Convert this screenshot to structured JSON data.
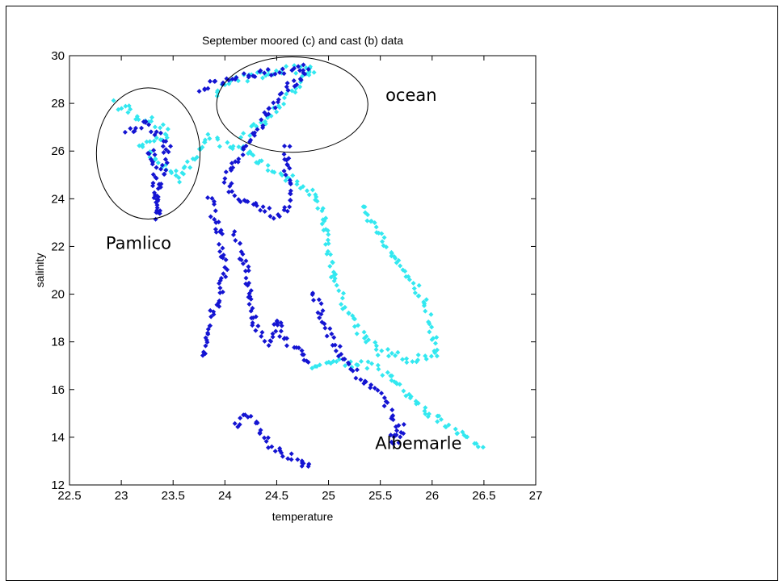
{
  "chart_data": {
    "type": "scatter",
    "title": "September moored (c) and cast (b) data",
    "xlabel": "temperature",
    "ylabel": "salinity",
    "xlim": [
      22.5,
      27
    ],
    "ylim": [
      12,
      30
    ],
    "xticks": [
      "22.5",
      "23",
      "23.5",
      "24",
      "24.5",
      "25",
      "25.5",
      "26",
      "26.5",
      "27"
    ],
    "yticks": [
      "12",
      "14",
      "16",
      "18",
      "20",
      "22",
      "24",
      "26",
      "28",
      "30"
    ],
    "grid": false,
    "colors": {
      "moored": "#33e8f0",
      "cast": "#1414d2",
      "axes": "#000000"
    },
    "series": [
      {
        "label": "moored (c)",
        "marker": "diamond",
        "path": [
          [
            22.95,
            28.0
          ],
          [
            23.05,
            27.8
          ],
          [
            23.15,
            27.5
          ],
          [
            23.3,
            27.2
          ],
          [
            23.45,
            26.7
          ],
          [
            23.2,
            26.2
          ],
          [
            23.35,
            25.7
          ],
          [
            23.55,
            24.8
          ],
          [
            23.7,
            25.8
          ],
          [
            23.85,
            26.6
          ],
          [
            24.0,
            26.3
          ],
          [
            24.2,
            26.0
          ],
          [
            24.35,
            25.5
          ],
          [
            24.5,
            25.2
          ],
          [
            24.7,
            24.6
          ],
          [
            24.85,
            24.2
          ],
          [
            24.95,
            23.3
          ],
          [
            25.0,
            22.0
          ],
          [
            25.05,
            20.8
          ],
          [
            25.15,
            19.6
          ],
          [
            25.3,
            18.5
          ],
          [
            25.5,
            17.6
          ],
          [
            25.7,
            17.3
          ],
          [
            25.95,
            17.3
          ],
          [
            26.05,
            17.6
          ],
          [
            26.0,
            18.3
          ],
          [
            25.95,
            19.4
          ],
          [
            25.8,
            20.6
          ],
          [
            25.6,
            21.8
          ],
          [
            25.4,
            23.0
          ],
          [
            25.3,
            23.8
          ]
        ],
        "path2": [
          [
            24.85,
            17.0
          ],
          [
            25.1,
            17.2
          ],
          [
            25.4,
            17.0
          ],
          [
            25.6,
            16.5
          ],
          [
            25.75,
            15.9
          ],
          [
            25.9,
            15.2
          ],
          [
            26.1,
            14.6
          ],
          [
            26.3,
            14.0
          ],
          [
            26.5,
            13.6
          ]
        ],
        "path3": [
          [
            23.9,
            28.4
          ],
          [
            24.1,
            29.0
          ],
          [
            24.35,
            29.2
          ],
          [
            24.6,
            29.4
          ],
          [
            24.85,
            29.5
          ],
          [
            24.7,
            28.7
          ],
          [
            24.5,
            27.8
          ],
          [
            24.3,
            27.0
          ],
          [
            24.15,
            26.5
          ]
        ]
      },
      {
        "label": "cast (b)",
        "marker": "diamond",
        "path": [
          [
            23.05,
            26.8
          ],
          [
            23.2,
            27.2
          ],
          [
            23.35,
            26.8
          ],
          [
            23.45,
            26.2
          ],
          [
            23.4,
            25.0
          ],
          [
            23.35,
            24.0
          ],
          [
            23.35,
            23.2
          ],
          [
            23.3,
            26.0
          ],
          [
            23.25,
            25.6
          ]
        ],
        "path2": [
          [
            23.75,
            28.6
          ],
          [
            23.9,
            28.9
          ],
          [
            24.1,
            29.1
          ],
          [
            24.3,
            29.2
          ],
          [
            24.5,
            29.3
          ],
          [
            24.75,
            29.5
          ],
          [
            24.8,
            29.3
          ],
          [
            24.6,
            28.6
          ],
          [
            24.45,
            27.8
          ],
          [
            24.35,
            27.0
          ],
          [
            24.2,
            26.3
          ],
          [
            24.1,
            25.6
          ],
          [
            24.0,
            24.8
          ],
          [
            24.1,
            24.2
          ],
          [
            24.3,
            23.6
          ],
          [
            24.5,
            23.3
          ],
          [
            24.65,
            23.8
          ],
          [
            24.6,
            25.0
          ],
          [
            24.6,
            26.3
          ]
        ],
        "path3": [
          [
            23.85,
            24.0
          ],
          [
            23.95,
            22.5
          ],
          [
            24.0,
            21.0
          ],
          [
            23.95,
            19.8
          ],
          [
            23.85,
            18.8
          ],
          [
            23.8,
            17.5
          ],
          [
            23.75,
            17.2
          ]
        ],
        "path4": [
          [
            24.1,
            22.5
          ],
          [
            24.2,
            21.0
          ],
          [
            24.25,
            19.5
          ],
          [
            24.3,
            18.5
          ],
          [
            24.45,
            18.0
          ],
          [
            24.5,
            19.0
          ],
          [
            24.55,
            18.2
          ],
          [
            24.75,
            17.5
          ],
          [
            24.85,
            17.0
          ]
        ],
        "path5": [
          [
            24.85,
            20.0
          ],
          [
            24.95,
            19.0
          ],
          [
            25.05,
            18.0
          ],
          [
            25.2,
            17.0
          ],
          [
            25.35,
            16.3
          ],
          [
            25.5,
            15.8
          ],
          [
            25.6,
            15.2
          ],
          [
            25.65,
            14.5
          ],
          [
            25.6,
            13.8
          ],
          [
            25.7,
            14.0
          ],
          [
            25.7,
            14.7
          ]
        ],
        "path6": [
          [
            24.1,
            14.5
          ],
          [
            24.2,
            15.0
          ],
          [
            24.3,
            14.6
          ],
          [
            24.35,
            14.0
          ],
          [
            24.55,
            13.3
          ],
          [
            24.7,
            13.1
          ],
          [
            24.8,
            12.7
          ],
          [
            24.75,
            13.0
          ]
        ]
      }
    ],
    "annotations": [
      {
        "text": "ocean",
        "data_x": 25.55,
        "data_y": 28.1
      },
      {
        "text": "Pamlico",
        "data_x": 22.85,
        "data_y": 21.9
      },
      {
        "text": "Albemarle",
        "data_x": 25.45,
        "data_y": 13.5
      }
    ],
    "ellipses": [
      {
        "name": "pamlico-circle",
        "cx": 23.26,
        "cy": 25.9,
        "rx_data": 0.5,
        "ry_data": 2.75
      },
      {
        "name": "ocean-circle",
        "cx": 24.65,
        "cy": 27.95,
        "rx_data": 0.73,
        "ry_data": 2.0
      }
    ]
  }
}
